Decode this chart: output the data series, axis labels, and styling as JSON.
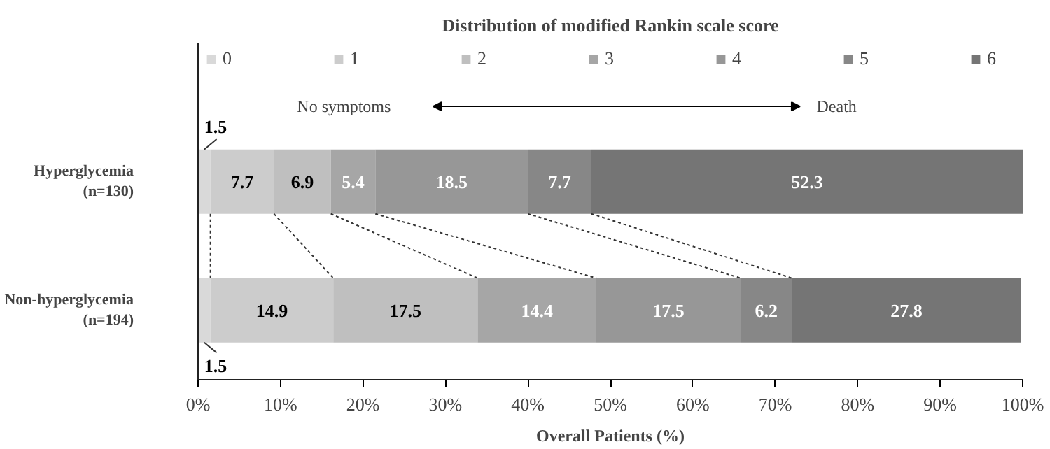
{
  "chart_data": {
    "type": "bar",
    "orientation": "horizontal",
    "stacked": true,
    "title": "Distribution of modified Rankin scale score",
    "xlabel": "Overall Patients (%)",
    "categories": [
      "Hyperglycemia\n(n=130)",
      "Non-hyperglycemia\n(n=194)"
    ],
    "series": [
      {
        "name": "0",
        "color": "#d9d9d9",
        "values": [
          1.5,
          1.5
        ]
      },
      {
        "name": "1",
        "color": "#cccccc",
        "values": [
          7.7,
          14.9
        ]
      },
      {
        "name": "2",
        "color": "#bfbfbf",
        "values": [
          6.9,
          17.5
        ]
      },
      {
        "name": "3",
        "color": "#a6a6a6",
        "values": [
          5.4,
          14.4
        ]
      },
      {
        "name": "4",
        "color": "#979797",
        "values": [
          18.5,
          17.5
        ]
      },
      {
        "name": "5",
        "color": "#878787",
        "values": [
          7.7,
          6.2
        ]
      },
      {
        "name": "6",
        "color": "#757575",
        "values": [
          52.3,
          27.8
        ]
      }
    ],
    "xlim": [
      0,
      100
    ],
    "xticks": [
      {
        "value": 0,
        "label": "0%"
      },
      {
        "value": 10,
        "label": "10%"
      },
      {
        "value": 20,
        "label": "20%"
      },
      {
        "value": 30,
        "label": "30%"
      },
      {
        "value": 40,
        "label": "40%"
      },
      {
        "value": 50,
        "label": "50%"
      },
      {
        "value": 60,
        "label": "60%"
      },
      {
        "value": 70,
        "label": "70%"
      },
      {
        "value": 80,
        "label": "80%"
      },
      {
        "value": 90,
        "label": "90%"
      },
      {
        "value": 100,
        "label": "100%"
      }
    ],
    "data_labels": true,
    "legend": "top",
    "grid": false,
    "annotations": [
      "No symptoms",
      "Death"
    ]
  }
}
